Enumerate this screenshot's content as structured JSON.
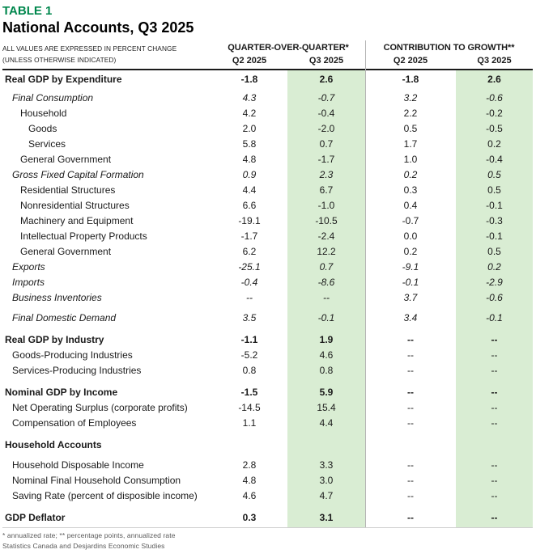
{
  "title": {
    "table_label": "TABLE 1",
    "table_title": "National Accounts, Q3 2025"
  },
  "header": {
    "note_line1": "ALL VALUES ARE EXPRESSED IN PERCENT CHANGE",
    "note_line2": "(UNLESS OTHERWISE INDICATED)",
    "group1": "QUARTER-OVER-QUARTER*",
    "group2": "CONTRIBUTION TO GROWTH**"
  },
  "colors": {
    "accent_green": "#00874d",
    "highlight_green": "#d9edd3"
  },
  "chart_data": {
    "type": "table",
    "title": "National Accounts, Q3 2025",
    "column_groups": [
      "QUARTER-OVER-QUARTER*",
      "CONTRIBUTION TO GROWTH**"
    ],
    "columns": [
      "Q2 2025",
      "Q3 2025",
      "Q2 2025",
      "Q3 2025"
    ],
    "rows": [
      {
        "label": "Real GDP by Expenditure",
        "style": "bold",
        "indent": 0,
        "gap": "none",
        "values": [
          "-1.8",
          "2.6",
          "-1.8",
          "2.6"
        ]
      },
      {
        "label": "Final Consumption",
        "style": "italic",
        "indent": 1,
        "gap": "sm",
        "values": [
          "4.3",
          "-0.7",
          "3.2",
          "-0.6"
        ]
      },
      {
        "label": "Household",
        "style": "normal",
        "indent": 2,
        "gap": "none",
        "values": [
          "4.2",
          "-0.4",
          "2.2",
          "-0.2"
        ]
      },
      {
        "label": "Goods",
        "style": "normal",
        "indent": 3,
        "gap": "none",
        "values": [
          "2.0",
          "-2.0",
          "0.5",
          "-0.5"
        ]
      },
      {
        "label": "Services",
        "style": "normal",
        "indent": 3,
        "gap": "none",
        "values": [
          "5.8",
          "0.7",
          "1.7",
          "0.2"
        ]
      },
      {
        "label": "General Government",
        "style": "normal",
        "indent": 2,
        "gap": "none",
        "values": [
          "4.8",
          "-1.7",
          "1.0",
          "-0.4"
        ]
      },
      {
        "label": "Gross Fixed Capital Formation",
        "style": "italic",
        "indent": 1,
        "gap": "none",
        "values": [
          "0.9",
          "2.3",
          "0.2",
          "0.5"
        ]
      },
      {
        "label": "Residential Structures",
        "style": "normal",
        "indent": 2,
        "gap": "none",
        "values": [
          "4.4",
          "6.7",
          "0.3",
          "0.5"
        ]
      },
      {
        "label": "Nonresidential Structures",
        "style": "normal",
        "indent": 2,
        "gap": "none",
        "values": [
          "6.6",
          "-1.0",
          "0.4",
          "-0.1"
        ]
      },
      {
        "label": "Machinery and Equipment",
        "style": "normal",
        "indent": 2,
        "gap": "none",
        "values": [
          "-19.1",
          "-10.5",
          "-0.7",
          "-0.3"
        ]
      },
      {
        "label": "Intellectual Property Products",
        "style": "normal",
        "indent": 2,
        "gap": "none",
        "values": [
          "-1.7",
          "-2.4",
          "0.0",
          "-0.1"
        ]
      },
      {
        "label": "General Government",
        "style": "normal",
        "indent": 2,
        "gap": "none",
        "values": [
          "6.2",
          "12.2",
          "0.2",
          "0.5"
        ]
      },
      {
        "label": "Exports",
        "style": "italic",
        "indent": 1,
        "gap": "none",
        "values": [
          "-25.1",
          "0.7",
          "-9.1",
          "0.2"
        ]
      },
      {
        "label": "Imports",
        "style": "italic",
        "indent": 1,
        "gap": "none",
        "values": [
          "-0.4",
          "-8.6",
          "-0.1",
          "-2.9"
        ]
      },
      {
        "label": "Business Inventories",
        "style": "italic",
        "indent": 1,
        "gap": "none",
        "values": [
          "--",
          "--",
          "3.7",
          "-0.6"
        ]
      },
      {
        "label": "Final Domestic Demand",
        "style": "italic",
        "indent": 1,
        "gap": "md",
        "values": [
          "3.5",
          "-0.1",
          "3.4",
          "-0.1"
        ]
      },
      {
        "label": "Real GDP by Industry",
        "style": "bold",
        "indent": 0,
        "gap": "lg",
        "values": [
          "-1.1",
          "1.9",
          "--",
          "--"
        ]
      },
      {
        "label": "Goods-Producing Industries",
        "style": "normal",
        "indent": 1,
        "gap": "none",
        "values": [
          "-5.2",
          "4.6",
          "--",
          "--"
        ]
      },
      {
        "label": "Services-Producing Industries",
        "style": "normal",
        "indent": 1,
        "gap": "none",
        "values": [
          "0.8",
          "0.8",
          "--",
          "--"
        ]
      },
      {
        "label": "Nominal GDP by Income",
        "style": "bold",
        "indent": 0,
        "gap": "lg",
        "values": [
          "-1.5",
          "5.9",
          "--",
          "--"
        ]
      },
      {
        "label": "Net Operating Surplus (corporate profits)",
        "style": "normal",
        "indent": 1,
        "gap": "none",
        "values": [
          "-14.5",
          "15.4",
          "--",
          "--"
        ]
      },
      {
        "label": "Compensation of Employees",
        "style": "normal",
        "indent": 1,
        "gap": "none",
        "values": [
          "1.1",
          "4.4",
          "--",
          "--"
        ]
      },
      {
        "label": "Household Accounts",
        "style": "bold",
        "indent": 0,
        "gap": "lg",
        "values": [
          "",
          "",
          "",
          ""
        ]
      },
      {
        "label": "Household Disposable Income",
        "style": "normal",
        "indent": 1,
        "gap": "md",
        "values": [
          "2.8",
          "3.3",
          "--",
          "--"
        ]
      },
      {
        "label": "Nominal Final Household Consumption",
        "style": "normal",
        "indent": 1,
        "gap": "none",
        "values": [
          "4.8",
          "3.0",
          "--",
          "--"
        ]
      },
      {
        "label": "Saving Rate (percent of disposible income)",
        "style": "normal",
        "indent": 1,
        "gap": "none",
        "values": [
          "4.6",
          "4.7",
          "--",
          "--"
        ]
      },
      {
        "label": "GDP Deflator",
        "style": "bold",
        "indent": 0,
        "gap": "lg",
        "values": [
          "0.3",
          "3.1",
          "--",
          "--"
        ]
      }
    ]
  },
  "footnotes": [
    "* annualized rate; ** percentage points, annualized rate",
    "Statistics Canada and Desjardins Economic Studies"
  ]
}
